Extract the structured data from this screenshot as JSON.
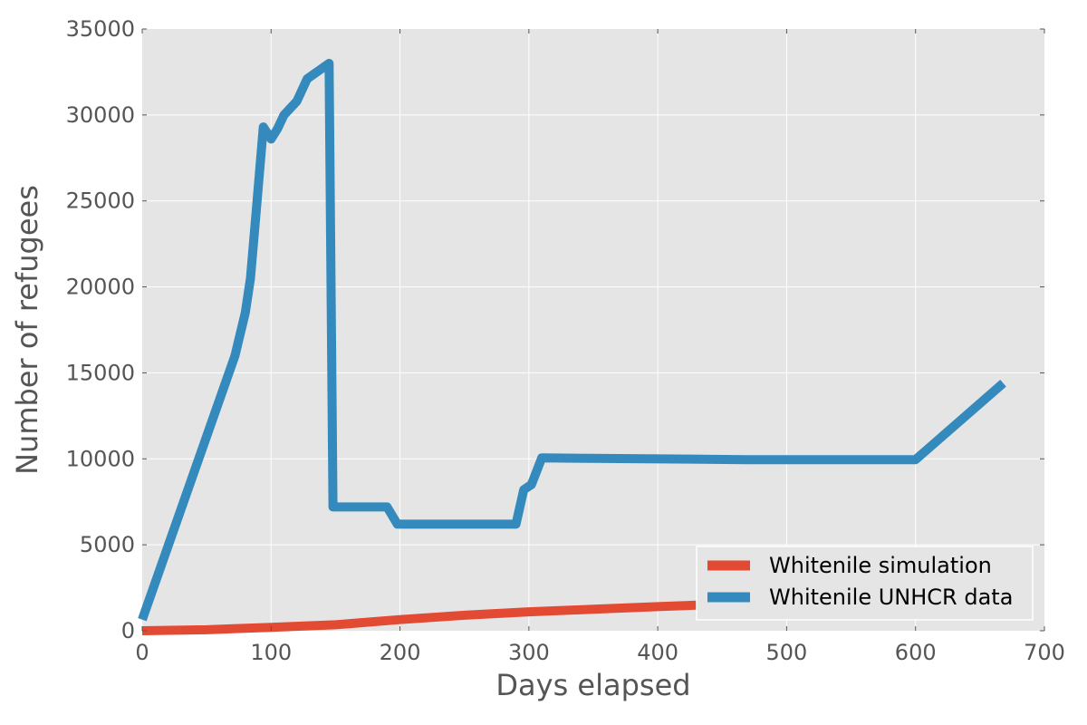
{
  "chart_data": {
    "type": "line",
    "xlabel": "Days elapsed",
    "ylabel": "Number of refugees",
    "xlim": [
      0,
      700
    ],
    "ylim": [
      0,
      35000
    ],
    "x_ticks": [
      0,
      100,
      200,
      300,
      400,
      500,
      600,
      700
    ],
    "y_ticks": [
      0,
      5000,
      10000,
      15000,
      20000,
      25000,
      30000,
      35000
    ],
    "grid": true,
    "legend_position": "lower-right",
    "series": [
      {
        "name": "Whitenile simulation",
        "color": "#E24A33",
        "x": [
          0,
          50,
          100,
          150,
          200,
          250,
          300,
          350,
          400,
          450,
          500,
          550,
          600,
          668
        ],
        "y": [
          0,
          60,
          200,
          350,
          650,
          900,
          1100,
          1250,
          1400,
          1550,
          1700,
          1850,
          2000,
          2200
        ]
      },
      {
        "name": "Whitenile UNHCR data",
        "color": "#348ABD",
        "x": [
          0,
          72,
          80,
          84,
          88,
          94,
          100,
          105,
          110,
          120,
          128,
          145,
          148,
          190,
          198,
          290,
          296,
          302,
          310,
          470,
          600,
          668
        ],
        "y": [
          650,
          16000,
          18500,
          20500,
          24000,
          29300,
          28600,
          29200,
          30000,
          30800,
          32100,
          33000,
          7200,
          7200,
          6200,
          6200,
          8200,
          8500,
          10050,
          9950,
          9950,
          14400
        ]
      }
    ]
  }
}
